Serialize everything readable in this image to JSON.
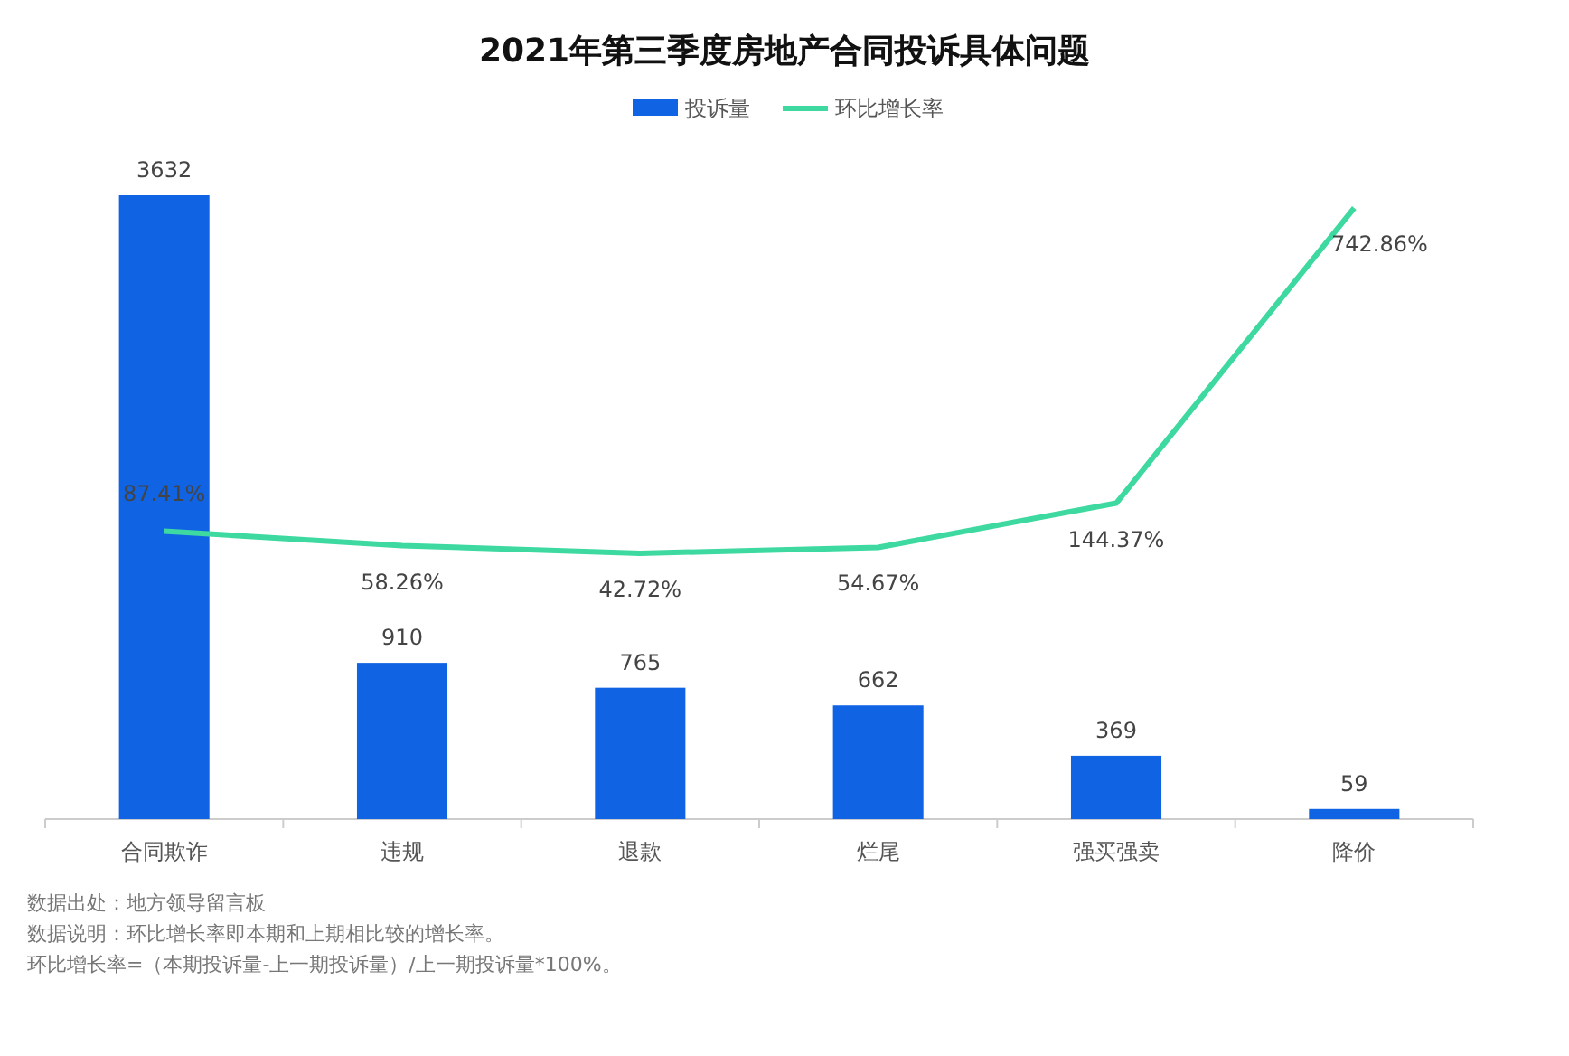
{
  "chart_data": {
    "type": "bar",
    "title": "2021年第三季度房地产合同投诉具体问题",
    "categories": [
      "合同欺诈",
      "违规",
      "退款",
      "烂尾",
      "强买强卖",
      "降价"
    ],
    "series": [
      {
        "name": "投诉量",
        "color": "#1063e3",
        "values": [
          3632,
          910,
          765,
          662,
          369,
          59
        ]
      },
      {
        "name": "环比增长率",
        "type": "line",
        "axis": "y2",
        "color": "#3dd9a0",
        "values": [
          87.41,
          58.26,
          42.72,
          54.67,
          144.37,
          742.86
        ],
        "value_labels": [
          "87.41%",
          "58.26%",
          "42.72%",
          "54.67%",
          "144.37%",
          "742.86%"
        ]
      }
    ],
    "data_labels": true,
    "legend": "top",
    "tick_labels": "x",
    "marker": "none",
    "annotations": [
      "数据出处：地方领导留言板",
      "数据说明：环比增长率即本期和上期相比较的增长率。",
      "环比增长率=（本期投诉量-上一期投诉量）/上一期投诉量*100%。"
    ]
  }
}
